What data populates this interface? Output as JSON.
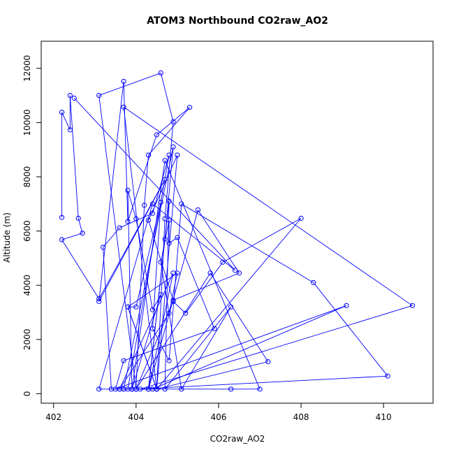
{
  "chart_data": {
    "type": "line",
    "title": "ATOM3 Northbound CO2raw_AO2",
    "xlabel": "CO2raw_AO2",
    "ylabel": "Altitude (m)",
    "xlim": [
      401.7,
      411.2
    ],
    "ylim": [
      -350,
      13000
    ],
    "x_ticks": [
      402,
      404,
      406,
      408,
      410
    ],
    "y_ticks": [
      0,
      2000,
      4000,
      6000,
      8000,
      10000,
      12000
    ],
    "x_tick_labels": [
      "402",
      "404",
      "406",
      "408",
      "410"
    ],
    "y_tick_labels": [
      "0",
      "2000",
      "4000",
      "6000",
      "8000",
      "10000",
      "12000"
    ],
    "grid": false,
    "legend": "none",
    "color": "#0000ff",
    "marker": "open-circle",
    "series": [
      {
        "x": [
          402.2,
          402.2,
          402.4,
          402.4,
          402.6,
          402.7,
          402.2,
          403.1,
          404.7,
          403.1,
          403.7,
          403.8,
          404.5,
          405.3,
          404.3,
          404.2,
          404.0,
          405.8,
          407.2,
          404.5,
          403.7,
          406.3,
          407.0,
          404.7,
          403.9,
          403.8,
          404.8,
          404.4,
          403.6,
          403.2,
          403.4,
          403.9,
          403.8,
          404.0,
          404.4,
          404.6,
          403.9,
          403.7,
          404.9,
          404.7,
          404.3,
          405.5,
          406.5,
          404.9,
          404.3,
          405.0,
          404.5,
          404.7,
          404.9,
          404.6,
          403.1,
          404.0,
          404.9,
          405.2,
          406.1,
          408.0,
          404.5,
          403.8,
          404.0,
          404.6,
          404.4,
          404.8,
          405.1,
          408.3,
          410.1,
          404.0,
          403.6,
          404.8,
          405.0,
          403.8,
          404.5,
          403.7,
          410.7,
          404.1,
          404.4,
          409.1,
          403.5,
          403.7,
          405.9,
          405.0,
          404.8,
          404.8,
          404.6,
          405.1,
          406.3,
          404.7,
          404.8,
          404.3,
          404.9,
          403.6,
          403.1,
          404.4,
          406.4,
          402.5
        ],
        "y": [
          6500,
          10380,
          9730,
          11000,
          6470,
          5920,
          5680,
          3500,
          7900,
          3400,
          11520,
          6350,
          9550,
          10560,
          8800,
          6950,
          170,
          4450,
          1180,
          170,
          170,
          170,
          170,
          8600,
          170,
          170,
          8800,
          6650,
          6120,
          5400,
          170,
          170,
          7500,
          6450,
          3100,
          3650,
          170,
          170,
          9100,
          5700,
          170,
          6780,
          4450,
          3450,
          6400,
          8800,
          170,
          6450,
          10030,
          11830,
          11000,
          170,
          3400,
          2970,
          4850,
          6470,
          170,
          3200,
          3200,
          7060,
          2400,
          1220,
          7000,
          4100,
          650,
          170,
          170,
          2970,
          4450,
          3200,
          170,
          10570,
          3250,
          170,
          170,
          3250,
          170,
          1220,
          2400,
          5760,
          5550,
          6400,
          4850,
          170,
          3200,
          170,
          7100,
          170,
          4450,
          170,
          170,
          7000,
          4550,
          10900
        ]
      }
    ]
  }
}
